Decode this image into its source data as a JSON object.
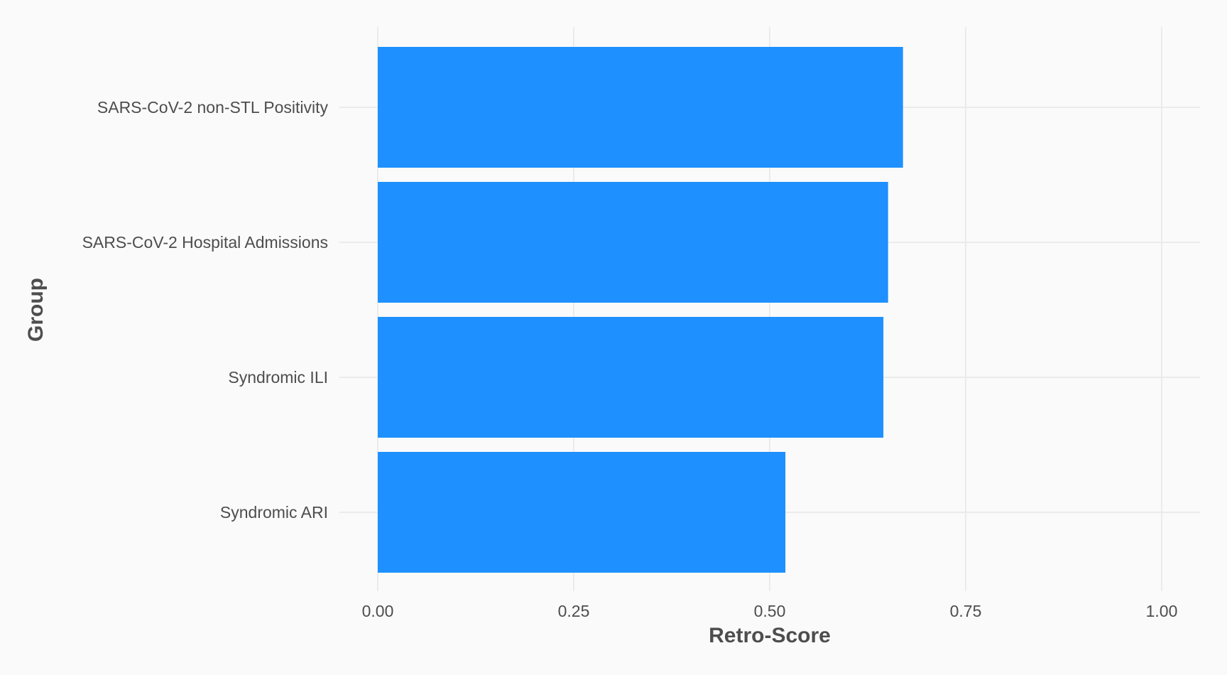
{
  "chart_data": {
    "type": "bar",
    "orientation": "horizontal",
    "title": "",
    "xlabel": "Retro-Score",
    "ylabel": "Group",
    "categories": [
      "SARS-CoV-2 non-STL Positivity",
      "SARS-CoV-2 Hospital Admissions",
      "Syndromic ILI",
      "Syndromic ARI"
    ],
    "values": [
      0.67,
      0.651,
      0.645,
      0.52
    ],
    "xlim": [
      0,
      1
    ],
    "xticks": [
      "0.00",
      "0.25",
      "0.50",
      "0.75",
      "1.00"
    ],
    "grid": true,
    "legend": "none",
    "colors": {
      "bar": "#1e90ff",
      "background": "#fafafa",
      "grid": "#ebebeb",
      "text": "#4d4d4d"
    }
  }
}
